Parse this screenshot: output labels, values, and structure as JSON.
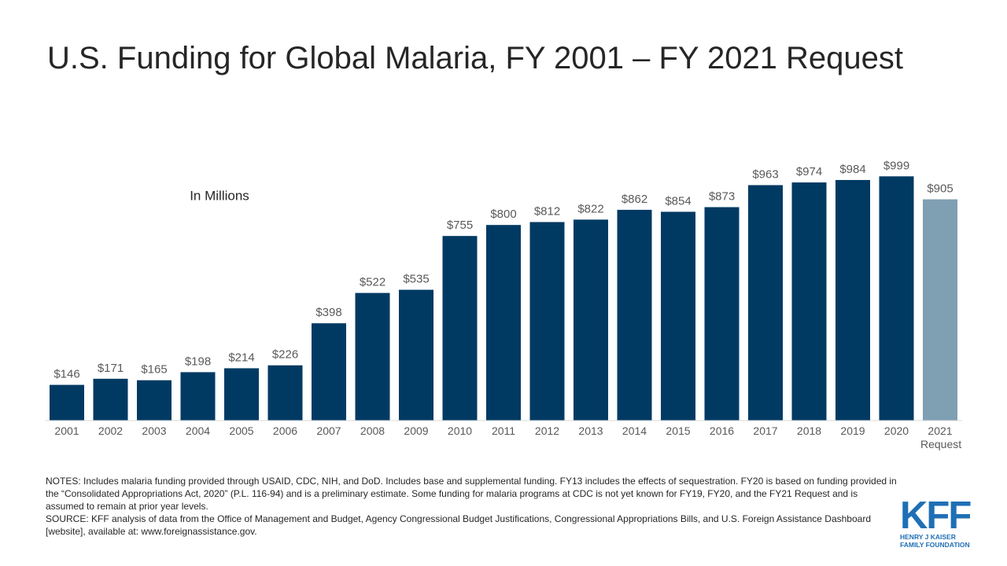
{
  "chart_data": {
    "type": "bar",
    "title": "U.S. Funding for Global Malaria, FY 2001 – FY 2021 Request",
    "subtitle": "In Millions",
    "categories": [
      "2001",
      "2002",
      "2003",
      "2004",
      "2005",
      "2006",
      "2007",
      "2008",
      "2009",
      "2010",
      "2011",
      "2012",
      "2013",
      "2014",
      "2015",
      "2016",
      "2017",
      "2018",
      "2019",
      "2020",
      "2021 Request"
    ],
    "values": [
      146,
      171,
      165,
      198,
      214,
      226,
      398,
      522,
      535,
      755,
      800,
      812,
      822,
      862,
      854,
      873,
      963,
      974,
      984,
      999,
      905
    ],
    "value_labels": [
      "$146",
      "$171",
      "$165",
      "$198",
      "$214",
      "$226",
      "$398",
      "$522",
      "$535",
      "$755",
      "$800",
      "$812",
      "$822",
      "$862",
      "$854",
      "$873",
      "$963",
      "$974",
      "$984",
      "$999",
      "$905"
    ],
    "colors": [
      "#003a63",
      "#003a63",
      "#003a63",
      "#003a63",
      "#003a63",
      "#003a63",
      "#003a63",
      "#003a63",
      "#003a63",
      "#003a63",
      "#003a63",
      "#003a63",
      "#003a63",
      "#003a63",
      "#003a63",
      "#003a63",
      "#003a63",
      "#003a63",
      "#003a63",
      "#003a63",
      "#7f9fb3"
    ],
    "ylim": [
      0,
      1000
    ],
    "notes": [
      "NOTES: Includes malaria funding provided through USAID, CDC, NIH, and DoD. Includes base and supplemental funding. FY13 includes the effects of sequestration. FY20 is based on funding provided in the “Consolidated Appropriations Act, 2020” (P.L. 116-94) and is a preliminary estimate. Some funding for malaria programs at CDC is not yet known for FY19, FY20, and the FY21 Request and is assumed to remain at prior year levels.",
      "SOURCE: KFF analysis of data from the Office of Management and Budget, Agency Congressional Budget Justifications, Congressional Appropriations Bills, and U.S. Foreign Assistance Dashboard [website], available at: www.foreignassistance.gov."
    ],
    "logo": {
      "mark": "KFF",
      "line1": "HENRY J KAISER",
      "line2": "FAMILY FOUNDATION"
    }
  }
}
